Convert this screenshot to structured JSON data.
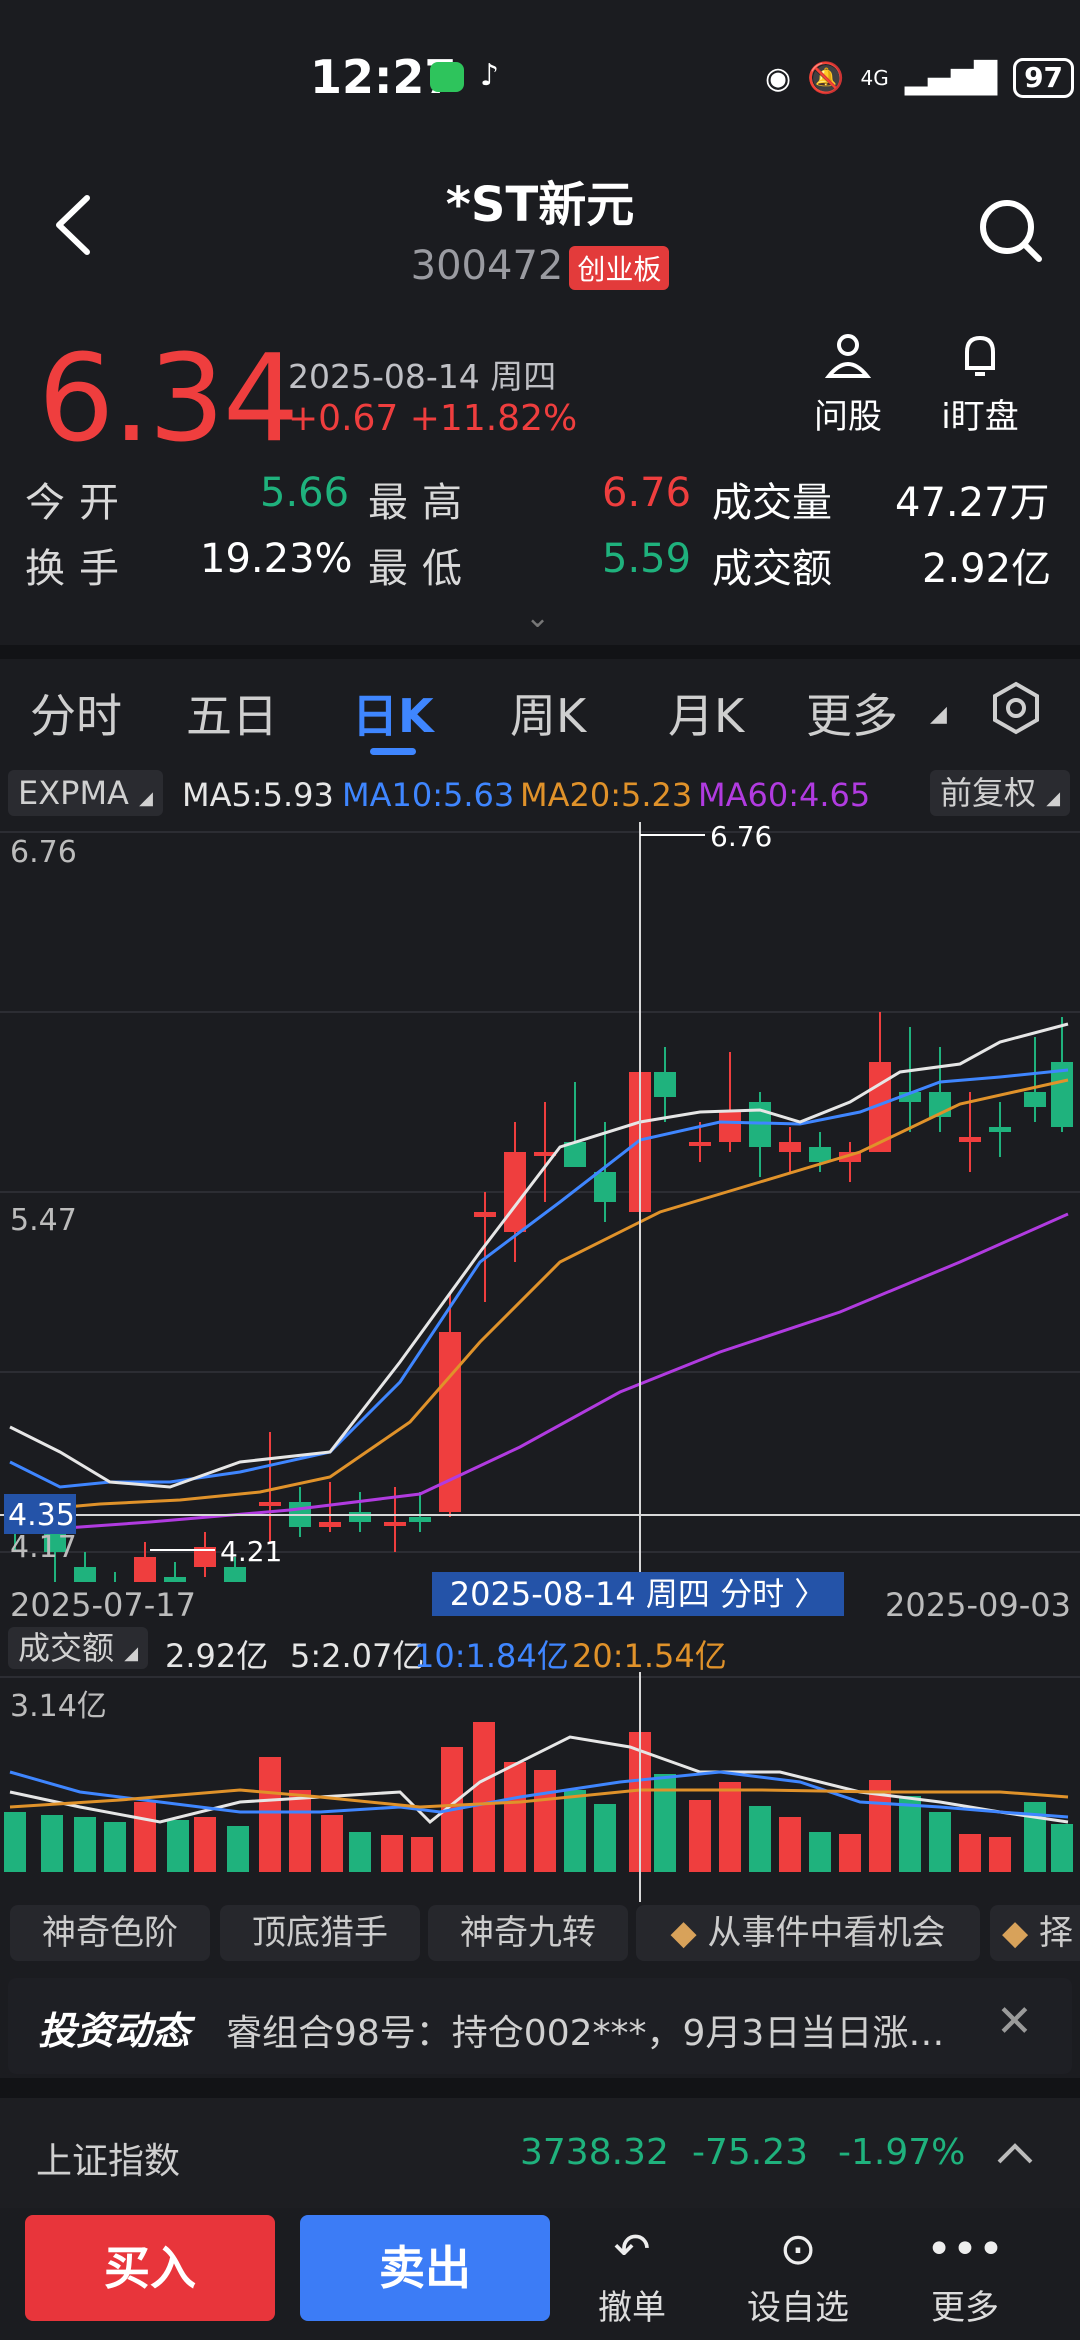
{
  "status": {
    "time": "12:27",
    "battery": "97",
    "network": "4G"
  },
  "header": {
    "title": "*ST新元",
    "code": "300472",
    "board": "创业板"
  },
  "quote": {
    "price": "6.34",
    "date": "2025-08-14 周四",
    "change": "+0.67 +11.82%",
    "ask_label": "问股",
    "watch_label": "i盯盘"
  },
  "stats": {
    "open_label": "今开",
    "open": "5.66",
    "high_label": "最高",
    "high": "6.76",
    "volume_label": "成交量",
    "volume": "47.27万",
    "turnover_label": "换手",
    "turnover": "19.23%",
    "low_label": "最低",
    "low": "5.59",
    "amount_label": "成交额",
    "amount": "2.92亿"
  },
  "tabs": [
    "分时",
    "五日",
    "日K",
    "周K",
    "月K",
    "更多"
  ],
  "indicators": {
    "main": "EXPMA",
    "ma5": "MA5:5.93",
    "ma10": "MA10:5.63",
    "ma20": "MA20:5.23",
    "ma60": "MA60:4.65",
    "adjust": "前复权"
  },
  "kline": {
    "y_top": "6.76",
    "y_mid": "5.47",
    "y_low": "4.17",
    "cursor_price": "4.35",
    "high_marker": "6.76",
    "low_marker": "4.21",
    "date_start": "2025-07-17",
    "date_cursor": "2025-08-14 周四 分时 〉",
    "date_end": "2025-09-03"
  },
  "volume": {
    "label": "成交额",
    "value": "2.92亿",
    "ma5": "5:2.07亿",
    "ma10": "10:1.84亿",
    "ma20": "20:1.54亿",
    "y_top": "3.14亿"
  },
  "tools": [
    "神奇色阶",
    "顶底猎手",
    "神奇九转",
    "从事件中看机会",
    "择"
  ],
  "news": {
    "tag": "投资动态",
    "text": "睿组合98号：持仓002***，9月3日当日涨…"
  },
  "index": {
    "name": "上证指数",
    "value": "3738.32",
    "change": "-75.23",
    "pct": "-1.97%"
  },
  "actions": {
    "buy": "买入",
    "sell": "卖出",
    "cancel": "撤单",
    "favorite": "设自选",
    "more": "更多"
  },
  "colors": {
    "up": "#ef3e3e",
    "down": "#1fb27d",
    "accent": "#3f86ff",
    "ma5": "#e6e6e6",
    "ma10": "#3f86ff",
    "ma20": "#e0922a",
    "ma60": "#b13be0"
  }
}
